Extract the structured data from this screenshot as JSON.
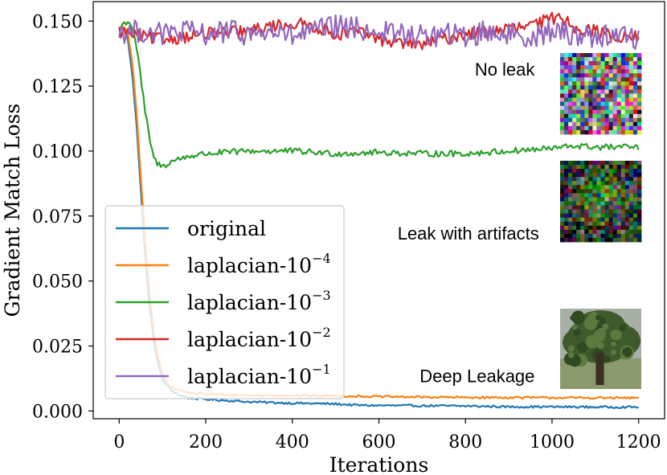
{
  "chart_data": {
    "type": "line",
    "title": "",
    "xlabel": "Iterations",
    "ylabel": "Gradient Match Loss",
    "xlim": [
      -60,
      1260
    ],
    "ylim": [
      -0.003,
      0.1575
    ],
    "xticks": [
      0,
      200,
      400,
      600,
      800,
      1000,
      1200
    ],
    "xtick_labels": [
      "0",
      "200",
      "400",
      "600",
      "800",
      "1000",
      "1200"
    ],
    "yticks": [
      0.0,
      0.025,
      0.05,
      0.075,
      0.1,
      0.125,
      0.15
    ],
    "ytick_labels": [
      "0.000",
      "0.025",
      "0.050",
      "0.075",
      "0.100",
      "0.125",
      "0.150"
    ],
    "legend_position": "lower-left",
    "series": [
      {
        "name": "original",
        "base": "original",
        "exp": "",
        "color": "#1f77b4",
        "noise": 0.0004,
        "x": [
          0,
          10,
          20,
          30,
          40,
          50,
          60,
          70,
          80,
          90,
          100,
          120,
          140,
          160,
          200,
          250,
          300,
          400,
          500,
          550,
          600,
          700,
          800,
          870,
          900,
          1000,
          1100,
          1200
        ],
        "y": [
          0.147,
          0.148,
          0.143,
          0.13,
          0.11,
          0.085,
          0.06,
          0.04,
          0.027,
          0.018,
          0.012,
          0.008,
          0.006,
          0.005,
          0.0045,
          0.004,
          0.0035,
          0.003,
          0.0027,
          0.0022,
          0.0021,
          0.002,
          0.0019,
          0.0017,
          0.0016,
          0.0016,
          0.0015,
          0.0015
        ]
      },
      {
        "name": "laplacian-10^-4",
        "base": "laplacian-10",
        "exp": "−4",
        "color": "#ff7f0e",
        "noise": 0.0004,
        "x": [
          0,
          10,
          20,
          30,
          40,
          50,
          60,
          70,
          80,
          90,
          100,
          120,
          140,
          160,
          200,
          300,
          400,
          500,
          600,
          800,
          1000,
          1200
        ],
        "y": [
          0.147,
          0.148,
          0.145,
          0.135,
          0.115,
          0.09,
          0.065,
          0.045,
          0.03,
          0.02,
          0.014,
          0.009,
          0.008,
          0.007,
          0.0065,
          0.006,
          0.006,
          0.0058,
          0.0055,
          0.0052,
          0.0051,
          0.005
        ]
      },
      {
        "name": "laplacian-10^-3",
        "base": "laplacian-10",
        "exp": "−3",
        "color": "#2ca02c",
        "noise": 0.0012,
        "x": [
          0,
          10,
          20,
          30,
          40,
          50,
          60,
          70,
          80,
          90,
          100,
          110,
          120,
          140,
          160,
          200,
          300,
          400,
          500,
          600,
          700,
          800,
          900,
          1000,
          1050,
          1100,
          1200
        ],
        "y": [
          0.147,
          0.149,
          0.15,
          0.148,
          0.14,
          0.128,
          0.115,
          0.105,
          0.097,
          0.095,
          0.094,
          0.095,
          0.096,
          0.097,
          0.098,
          0.099,
          0.1,
          0.1,
          0.099,
          0.0995,
          0.099,
          0.099,
          0.1,
          0.101,
          0.102,
          0.1015,
          0.1015
        ]
      },
      {
        "name": "laplacian-10^-2",
        "base": "laplacian-10",
        "exp": "−2",
        "color": "#d62728",
        "noise": 0.0025,
        "x": [
          0,
          50,
          100,
          200,
          300,
          350,
          400,
          450,
          500,
          550,
          600,
          650,
          700,
          750,
          800,
          850,
          900,
          950,
          1000,
          1020,
          1050,
          1100,
          1150,
          1200
        ],
        "y": [
          0.146,
          0.144,
          0.143,
          0.145,
          0.146,
          0.148,
          0.149,
          0.148,
          0.145,
          0.146,
          0.143,
          0.142,
          0.141,
          0.143,
          0.145,
          0.146,
          0.147,
          0.148,
          0.151,
          0.152,
          0.148,
          0.146,
          0.144,
          0.144
        ]
      },
      {
        "name": "laplacian-10^-1",
        "base": "laplacian-10",
        "exp": "−1",
        "color": "#9467bd",
        "noise": 0.0045,
        "x": [
          0,
          50,
          100,
          150,
          200,
          250,
          300,
          350,
          400,
          450,
          500,
          550,
          600,
          650,
          700,
          750,
          800,
          850,
          900,
          950,
          1000,
          1050,
          1100,
          1150,
          1200
        ],
        "y": [
          0.146,
          0.146,
          0.145,
          0.146,
          0.145,
          0.146,
          0.145,
          0.146,
          0.144,
          0.146,
          0.148,
          0.147,
          0.146,
          0.145,
          0.144,
          0.145,
          0.144,
          0.146,
          0.145,
          0.144,
          0.146,
          0.145,
          0.144,
          0.145,
          0.143
        ]
      }
    ],
    "annotations": [
      {
        "text": "No leak",
        "x": 960,
        "y": 0.1315,
        "thumbnail": "noise"
      },
      {
        "text": "Leak with artifacts",
        "x": 970,
        "y": 0.0685,
        "thumbnail": "noisy-tree"
      },
      {
        "text": "Deep Leakage",
        "x": 960,
        "y": 0.0135,
        "thumbnail": "tree"
      }
    ]
  }
}
